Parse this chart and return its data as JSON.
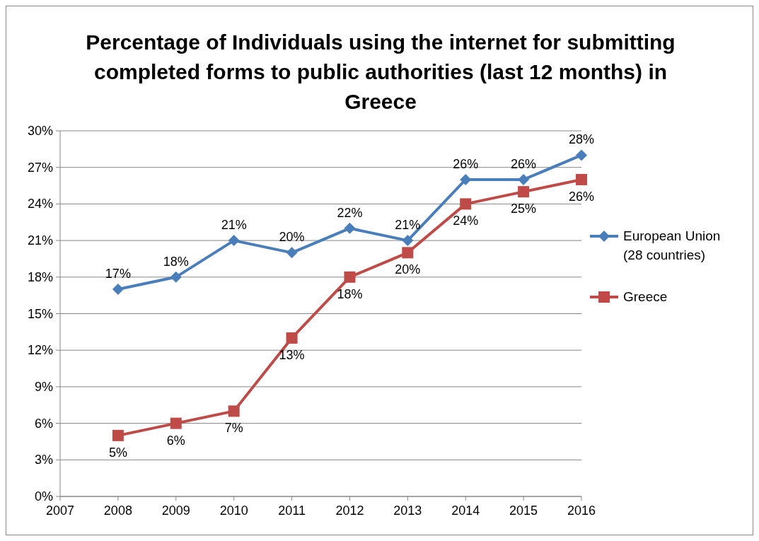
{
  "chart_data": {
    "type": "line",
    "title": "Percentage of Individuals using the internet for submitting completed forms to public authorities (last 12 months) in Greece",
    "x": [
      2008,
      2009,
      2010,
      2011,
      2012,
      2013,
      2014,
      2015,
      2016
    ],
    "xlim": [
      2007,
      2016
    ],
    "xticks": [
      2007,
      2008,
      2009,
      2010,
      2011,
      2012,
      2013,
      2014,
      2015,
      2016
    ],
    "ylim": [
      0,
      30
    ],
    "yticks": [
      {
        "value": 0,
        "label": "0%"
      },
      {
        "value": 3,
        "label": "3%"
      },
      {
        "value": 6,
        "label": "6%"
      },
      {
        "value": 9,
        "label": "9%"
      },
      {
        "value": 12,
        "label": "12%"
      },
      {
        "value": 15,
        "label": "15%"
      },
      {
        "value": 18,
        "label": "18%"
      },
      {
        "value": 21,
        "label": "21%"
      },
      {
        "value": 24,
        "label": "24%"
      },
      {
        "value": 27,
        "label": "27%"
      },
      {
        "value": 30,
        "label": "30%"
      }
    ],
    "grid": "y",
    "legend": "right",
    "series": [
      {
        "name": "European Union (28 countries)",
        "color": "#4a7ebb",
        "marker": "diamond",
        "values": [
          17,
          18,
          21,
          20,
          22,
          21,
          26,
          26,
          28
        ],
        "value_labels": [
          "17%",
          "18%",
          "21%",
          "20%",
          "22%",
          "21%",
          "26%",
          "26%",
          "28%"
        ]
      },
      {
        "name": "Greece",
        "color": "#be4b48",
        "marker": "square",
        "values": [
          5,
          6,
          7,
          13,
          18,
          20,
          24,
          25,
          26
        ],
        "value_labels": [
          "5%",
          "6%",
          "7%",
          "13%",
          "18%",
          "20%",
          "24%",
          "25%",
          "26%"
        ]
      }
    ]
  }
}
